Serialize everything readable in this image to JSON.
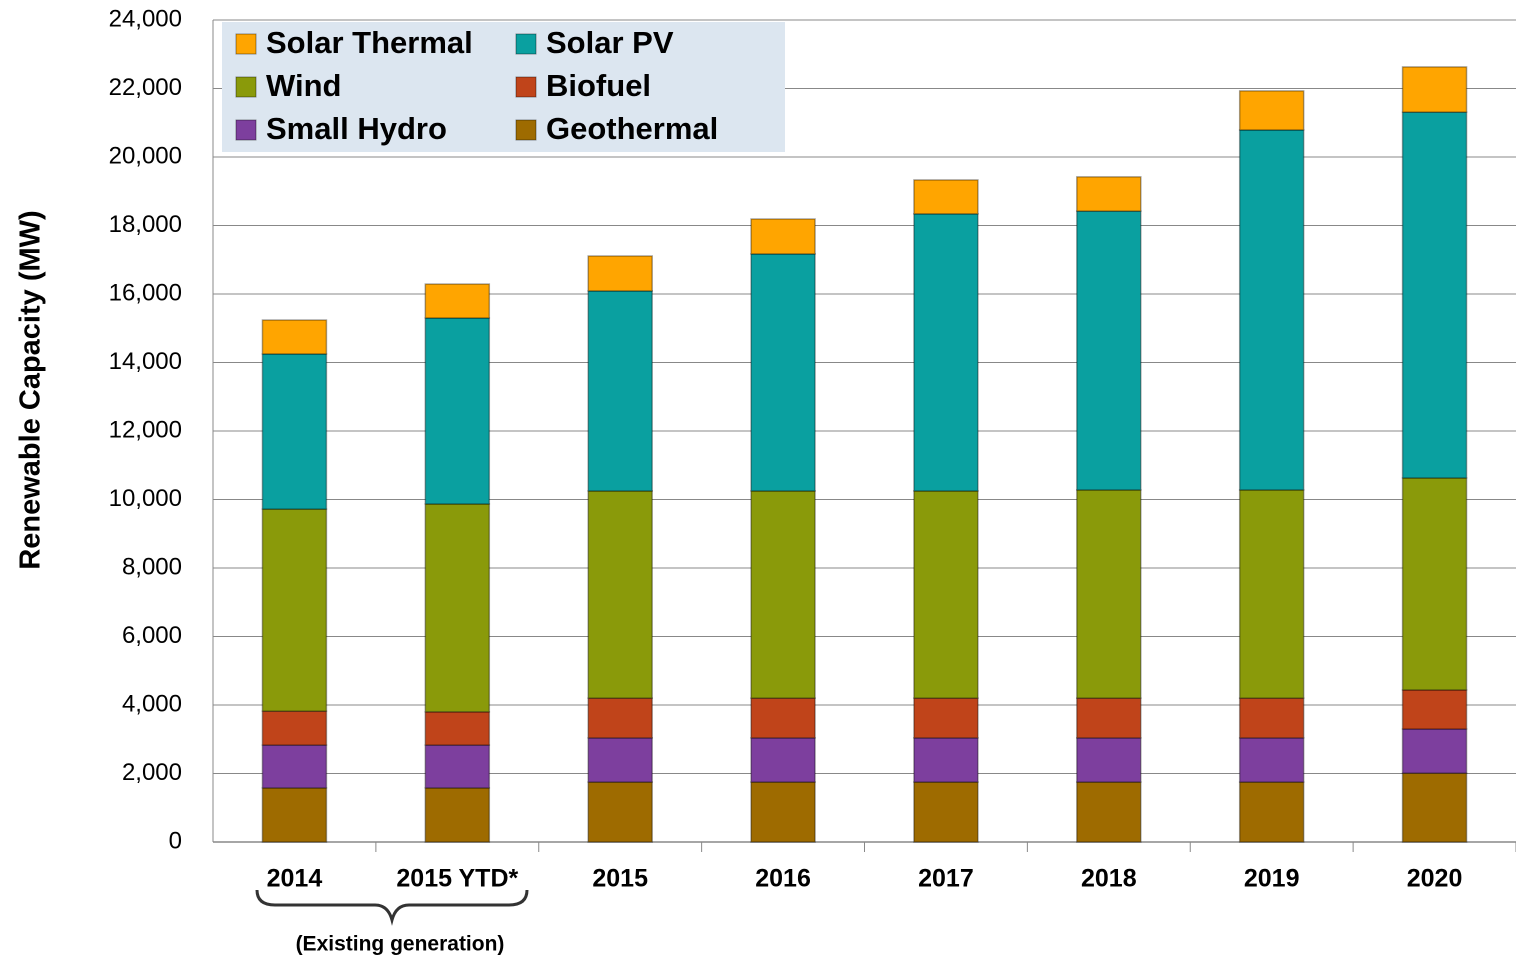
{
  "chart_data": {
    "type": "stacked_bar",
    "y_label": "Renewable Capacity (MW)",
    "annotation": "(Existing generation)",
    "categories": [
      "2014",
      "2015 YTD*",
      "2015",
      "2016",
      "2017",
      "2018",
      "2019",
      "2020"
    ],
    "series": [
      {
        "name": "Geothermal",
        "color": "#9e6b00",
        "values": [
          1580,
          1580,
          1750,
          1750,
          1750,
          1750,
          1750,
          2010
        ]
      },
      {
        "name": "Small Hydro",
        "color": "#7d3f9e",
        "values": [
          1250,
          1250,
          1290,
          1290,
          1290,
          1290,
          1290,
          1290
        ]
      },
      {
        "name": "Biofuel",
        "color": "#c0441a",
        "values": [
          990,
          970,
          1160,
          1160,
          1160,
          1160,
          1160,
          1140
        ]
      },
      {
        "name": "Wind",
        "color": "#8a9a0a",
        "values": [
          5900,
          6070,
          6050,
          6050,
          6050,
          6080,
          6080,
          6190
        ]
      },
      {
        "name": "Solar PV",
        "color": "#0aa0a0",
        "values": [
          4530,
          5430,
          5840,
          6920,
          8090,
          8140,
          10510,
          10680
        ]
      },
      {
        "name": "Solar Thermal",
        "color": "#ffa500",
        "values": [
          990,
          990,
          1020,
          1020,
          990,
          1000,
          1140,
          1320
        ]
      }
    ],
    "ylim": [
      0,
      24000
    ],
    "yticks": [
      0,
      {
        "value": 2000,
        "label": "2,000"
      },
      {
        "value": 4000,
        "label": "4,000"
      },
      {
        "value": 6000,
        "label": "6,000"
      },
      {
        "value": 8000,
        "label": "8,000"
      },
      {
        "value": 10000,
        "label": "10,000"
      },
      {
        "value": 12000,
        "label": "12,000"
      },
      {
        "value": 14000,
        "label": "14,000"
      },
      {
        "value": 16000,
        "label": "16,000"
      },
      {
        "value": 18000,
        "label": "18,000"
      },
      {
        "value": 20000,
        "label": "20,000"
      },
      {
        "value": 22000,
        "label": "22,000"
      },
      {
        "value": 24000,
        "label": "24,000"
      }
    ],
    "grid": true,
    "legend": "top-left"
  }
}
